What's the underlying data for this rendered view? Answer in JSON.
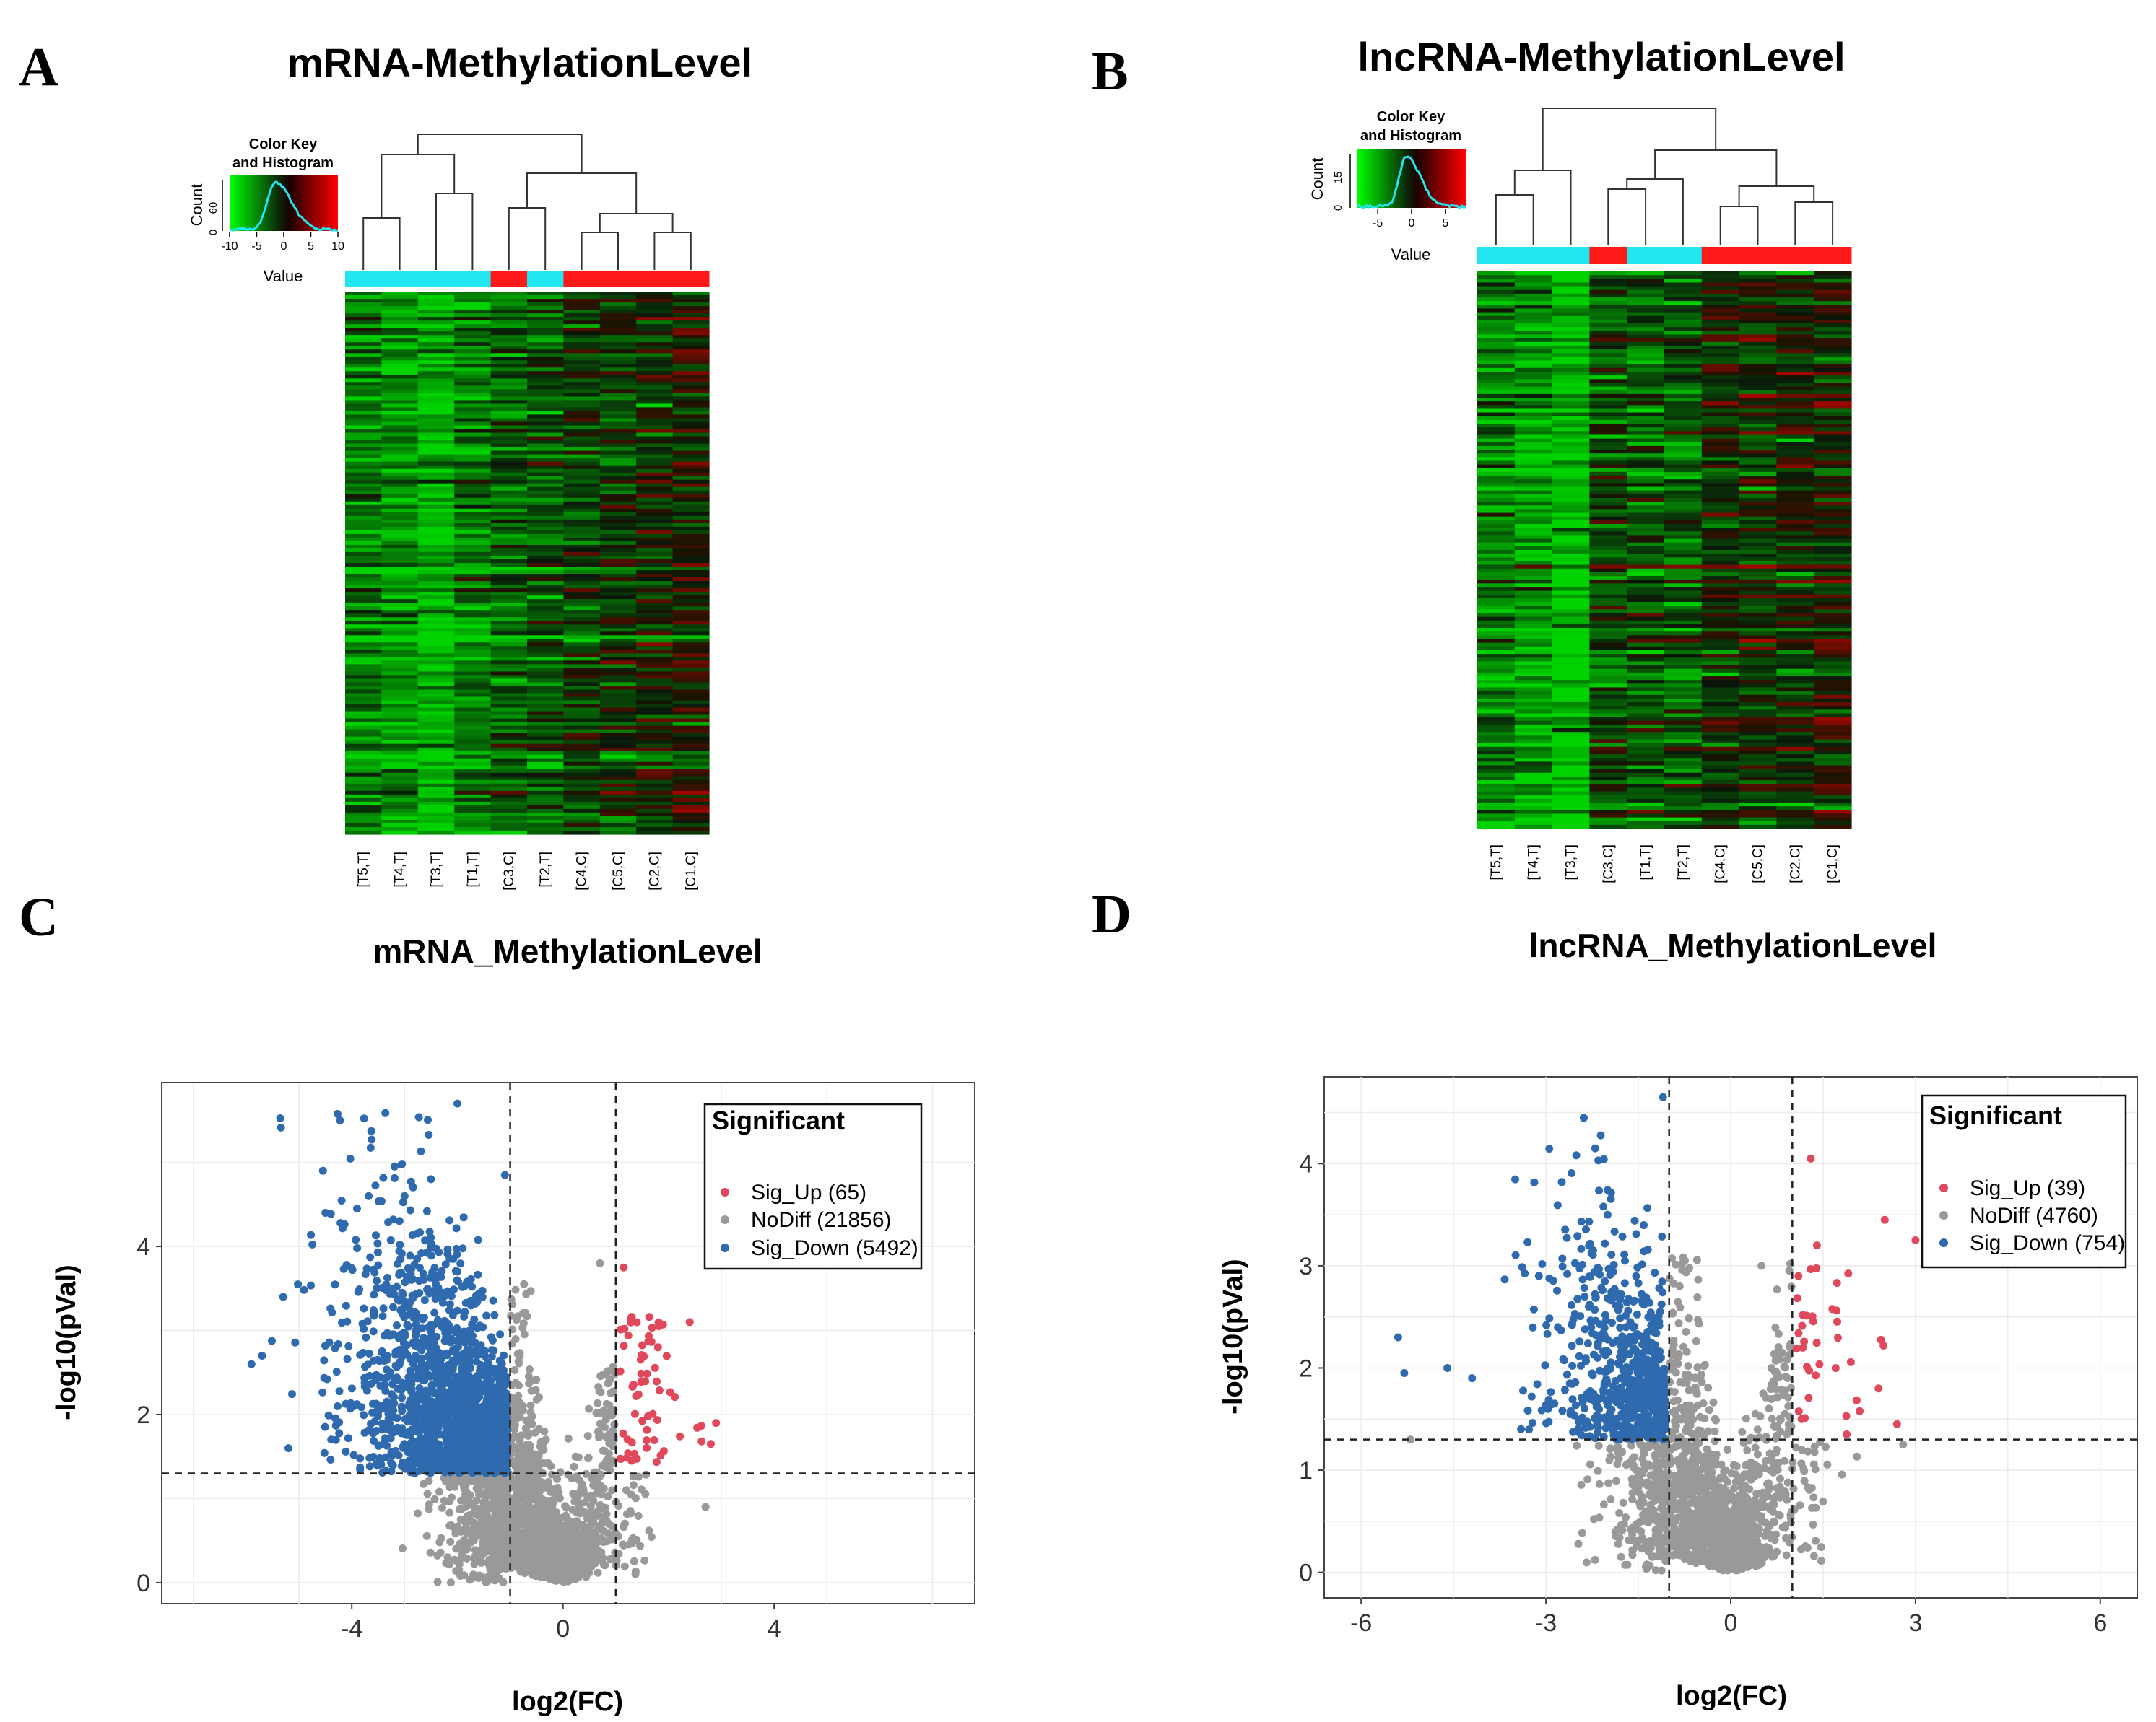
{
  "panels": {
    "A": {
      "letter": "A",
      "title": "mRNA-MethylationLevel"
    },
    "B": {
      "letter": "B",
      "title": "lncRNA-MethylationLevel"
    },
    "C": {
      "letter": "C",
      "title": "mRNA_MethylationLevel"
    },
    "D": {
      "letter": "D",
      "title": "lncRNA_MethylationLevel"
    }
  },
  "colors": {
    "sig_up": "#e0485b",
    "nodiff": "#999999",
    "sig_down": "#2e6aad",
    "tumor_bar": "#22e6f0",
    "control_bar": "#ff1a1a",
    "heat_low": "#22c41a",
    "heat_mid": "#000000",
    "heat_high": "#ff0000",
    "hist_line": "#22e6f0"
  },
  "chart_data": [
    {
      "type": "heatmap",
      "panel": "A",
      "title": "mRNA-MethylationLevel",
      "samples": [
        "[T5,T]",
        "[T4,T]",
        "[T3,T]",
        "[T1,T]",
        "[C3,C]",
        "[T2,T]",
        "[C4,C]",
        "[C5,C]",
        "[C2,C]",
        "[C1,C]"
      ],
      "groups": [
        "T",
        "T",
        "T",
        "T",
        "C",
        "T",
        "C",
        "C",
        "C",
        "C"
      ],
      "sample_mean": [
        -4,
        -5,
        -6,
        -4,
        -3,
        -2.5,
        -1.5,
        -1,
        -0.5,
        0
      ],
      "color_key": {
        "title_line1": "Color Key",
        "title_line2": "and Histogram",
        "ylabel": "Count",
        "xlabel": "Value",
        "xticks": [
          "-10",
          "-5",
          "0",
          "5",
          "10"
        ],
        "yticks": [
          "0",
          "60"
        ],
        "range": [
          -10,
          10
        ]
      }
    },
    {
      "type": "heatmap",
      "panel": "B",
      "title": "lncRNA-MethylationLevel",
      "samples": [
        "[T5,T]",
        "[T4,T]",
        "[T3,T]",
        "[C3,C]",
        "[T1,T]",
        "[T2,T]",
        "[C4,C]",
        "[C5,C]",
        "[C2,C]",
        "[C1,C]"
      ],
      "groups": [
        "T",
        "T",
        "T",
        "C",
        "T",
        "T",
        "C",
        "C",
        "C",
        "C"
      ],
      "sample_mean": [
        -4,
        -5,
        -6.5,
        -2,
        -2.5,
        -2.5,
        -1,
        -1,
        -0.5,
        0
      ],
      "color_key": {
        "title_line1": "Color Key",
        "title_line2": "and Histogram",
        "ylabel": "Count",
        "xlabel": "Value",
        "xticks": [
          "-5",
          "0",
          "5"
        ],
        "yticks": [
          "0",
          "15"
        ],
        "range": [
          -8,
          8
        ]
      }
    },
    {
      "type": "scatter",
      "panel": "C",
      "title": "mRNA_MethylationLevel",
      "xlabel": "log2(FC)",
      "ylabel": "-log10(pVal)",
      "xlim": [
        -7.6,
        7.8
      ],
      "ylim": [
        -0.25,
        5.95
      ],
      "xticks": [
        -4,
        0,
        4
      ],
      "yticks": [
        0,
        2,
        4
      ],
      "thresholds": {
        "fc_left": -1,
        "fc_right": 1,
        "pval": 1.3
      },
      "grid": true,
      "legend": {
        "title": "Significant",
        "placement": "top-right",
        "entries": [
          "Sig_Up (65)",
          "NoDiff (21856)",
          "Sig_Down (5492)"
        ]
      },
      "series": [
        {
          "name": "Sig_Up (65)",
          "key": "sig_up",
          "count": 65
        },
        {
          "name": "NoDiff (21856)",
          "key": "nodiff",
          "count": 21856
        },
        {
          "name": "Sig_Down (5492)",
          "key": "sig_down",
          "count": 5492
        }
      ],
      "sample_points": {
        "sig_down": [
          [
            -2,
            5.7
          ],
          [
            -4.5,
            4.4
          ],
          [
            -5.3,
            3.4
          ],
          [
            -5.7,
            2.7
          ],
          [
            -5.9,
            2.6
          ],
          [
            -5.2,
            1.6
          ],
          [
            -1.1,
            4.85
          ],
          [
            -2.5,
            4.8
          ],
          [
            -3,
            4.6
          ]
        ],
        "sig_up": [
          [
            1.15,
            3.75
          ],
          [
            2.4,
            3.1
          ],
          [
            2.9,
            1.9
          ],
          [
            2.8,
            1.65
          ],
          [
            1.8,
            2.8
          ],
          [
            1.3,
            1.45
          ]
        ],
        "nodiff": [
          [
            2.7,
            0.9
          ],
          [
            0.7,
            3.8
          ],
          [
            -0.1,
            0.05
          ],
          [
            1.2,
            1.1
          ],
          [
            -1.3,
            0.7
          ]
        ]
      }
    },
    {
      "type": "scatter",
      "panel": "D",
      "title": "lncRNA_MethylationLevel",
      "xlabel": "log2(FC)",
      "ylabel": "-log10(pVal)",
      "xlim": [
        -6.6,
        6.6
      ],
      "ylim": [
        -0.25,
        4.85
      ],
      "xticks": [
        -6,
        -3,
        0,
        3,
        6
      ],
      "yticks": [
        0,
        1,
        2,
        3,
        4
      ],
      "thresholds": {
        "fc_left": -1,
        "fc_right": 1,
        "pval": 1.3
      },
      "grid": true,
      "legend": {
        "title": "Significant",
        "placement": "top-right",
        "entries": [
          "Sig_Up (39)",
          "NoDiff (4760)",
          "Sig_Down (754)"
        ]
      },
      "series": [
        {
          "name": "Sig_Up (39)",
          "key": "sig_up",
          "count": 39
        },
        {
          "name": "NoDiff (4760)",
          "key": "nodiff",
          "count": 4760
        },
        {
          "name": "Sig_Down (754)",
          "key": "sig_down",
          "count": 754
        }
      ],
      "sample_points": {
        "sig_down": [
          [
            -1.1,
            4.65
          ],
          [
            -2.2,
            4.15
          ],
          [
            -5.4,
            2.3
          ],
          [
            -5.3,
            1.95
          ],
          [
            -4.6,
            2.0
          ],
          [
            -4.2,
            1.9
          ],
          [
            -2.0,
            3.5
          ]
        ],
        "sig_up": [
          [
            1.3,
            4.05
          ],
          [
            2.5,
            3.45
          ],
          [
            3.0,
            3.25
          ],
          [
            1.4,
            3.2
          ],
          [
            2.7,
            1.45
          ],
          [
            2.4,
            1.8
          ],
          [
            1.1,
            2.9
          ]
        ],
        "nodiff": [
          [
            -5.2,
            1.3
          ],
          [
            2.8,
            1.25
          ],
          [
            0.5,
            3.0
          ],
          [
            -0.05,
            0.02
          ],
          [
            1.0,
            0.6
          ]
        ]
      }
    }
  ]
}
